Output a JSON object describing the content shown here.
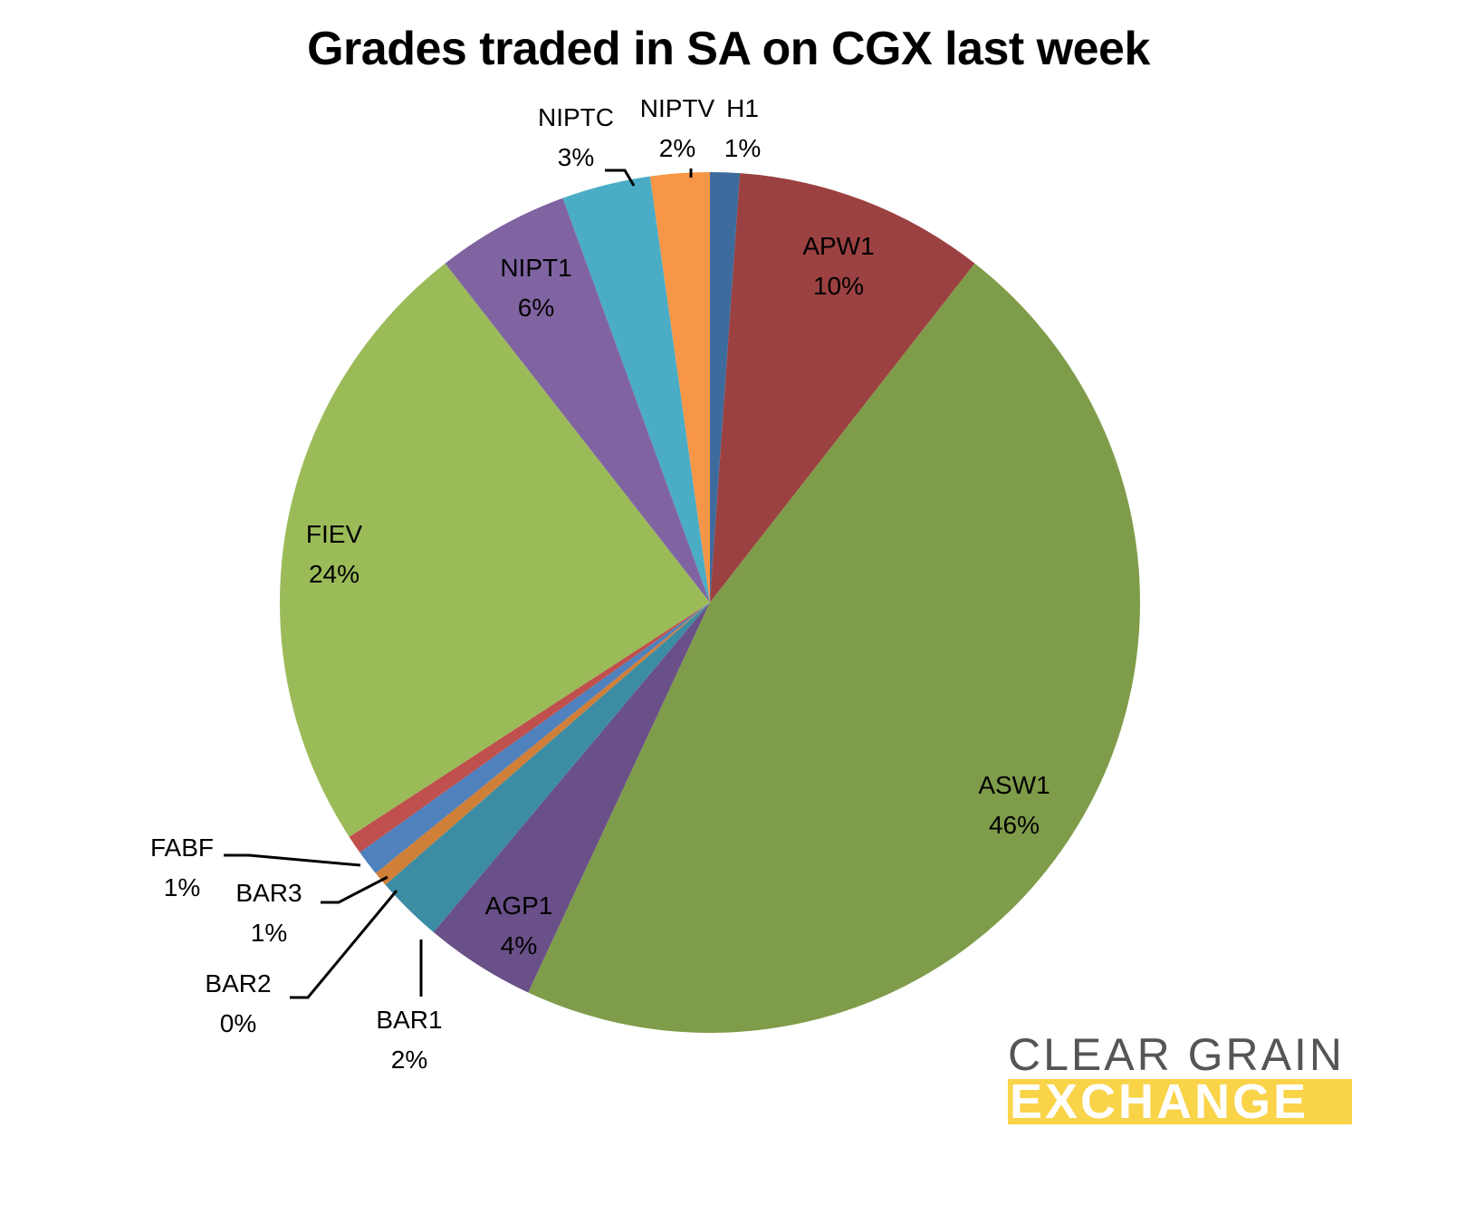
{
  "chart_data": {
    "type": "pie",
    "title": "Grades traded in SA on CGX last week",
    "legend": "none (data labels on slices)",
    "slices": [
      {
        "label": "H1",
        "value": 1,
        "display": "1%",
        "color": "#3e6b9e"
      },
      {
        "label": "APW1",
        "value": 10,
        "display": "10%",
        "color": "#9b4141"
      },
      {
        "label": "ASW1",
        "value": 46,
        "display": "46%",
        "color": "#7f9c4a"
      },
      {
        "label": "AGP1",
        "value": 4,
        "display": "4%",
        "color": "#6a5088"
      },
      {
        "label": "BAR1",
        "value": 2,
        "display": "2%",
        "color": "#3c8da3"
      },
      {
        "label": "BAR2",
        "value": 0,
        "display": "0%",
        "color": "#d07f39"
      },
      {
        "label": "BAR3",
        "value": 1,
        "display": "1%",
        "color": "#4f81bd"
      },
      {
        "label": "FABF",
        "value": 1,
        "display": "1%",
        "color": "#c0504d"
      },
      {
        "label": "FIEV",
        "value": 24,
        "display": "24%",
        "color": "#9bbb59"
      },
      {
        "label": "NIPT1",
        "value": 6,
        "display": "6%",
        "color": "#8064a2"
      },
      {
        "label": "NIPTC",
        "value": 3,
        "display": "3%",
        "color": "#4bacc6"
      },
      {
        "label": "NIPTV",
        "value": 2,
        "display": "2%",
        "color": "#f79646"
      }
    ]
  },
  "logo": {
    "line1": "CLEAR GRAIN",
    "line2": "EXCHANGE",
    "line1_color": "#555555",
    "line2_bg": "#f9d348"
  }
}
